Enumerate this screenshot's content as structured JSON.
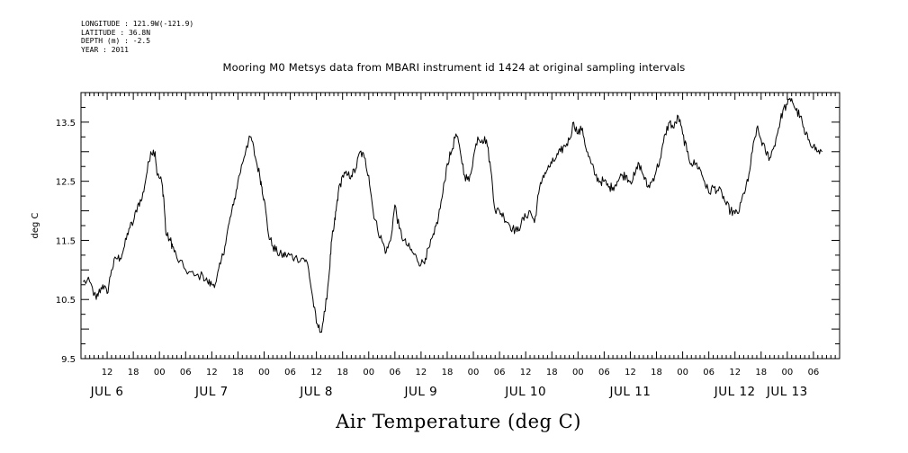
{
  "metadata": {
    "longitude": "LONGITUDE : 121.9W(-121.9)",
    "latitude": "LATITUDE : 36.8N",
    "depth": "DEPTH (m) : -2.5",
    "year": "YEAR : 2011"
  },
  "chart_data": {
    "type": "line",
    "title": "Mooring M0 Metsys data from MBARI instrument id 1424 at original sampling intervals",
    "xlabel": "Air Temperature (deg C)",
    "ylabel": "deg C",
    "ylim": [
      9.5,
      14.0
    ],
    "xlim_hours": [
      0,
      174
    ],
    "x_unit": "hours after 2011-07-06 06:00",
    "yticks": [
      9.5,
      10.5,
      11.5,
      12.5,
      13.5
    ],
    "ytick_labels": [
      "9.5",
      "10.5",
      "11.5",
      "12.5",
      "13.5"
    ],
    "hour_ticks": [
      {
        "h": 6,
        "label": "12"
      },
      {
        "h": 12,
        "label": "18"
      },
      {
        "h": 18,
        "label": "00"
      },
      {
        "h": 24,
        "label": "06"
      },
      {
        "h": 30,
        "label": "12"
      },
      {
        "h": 36,
        "label": "18"
      },
      {
        "h": 42,
        "label": "00"
      },
      {
        "h": 48,
        "label": "06"
      },
      {
        "h": 54,
        "label": "12"
      },
      {
        "h": 60,
        "label": "18"
      },
      {
        "h": 66,
        "label": "00"
      },
      {
        "h": 72,
        "label": "06"
      },
      {
        "h": 78,
        "label": "12"
      },
      {
        "h": 84,
        "label": "18"
      },
      {
        "h": 90,
        "label": "00"
      },
      {
        "h": 96,
        "label": "06"
      },
      {
        "h": 102,
        "label": "12"
      },
      {
        "h": 108,
        "label": "18"
      },
      {
        "h": 114,
        "label": "00"
      },
      {
        "h": 120,
        "label": "06"
      },
      {
        "h": 126,
        "label": "12"
      },
      {
        "h": 132,
        "label": "18"
      },
      {
        "h": 138,
        "label": "00"
      },
      {
        "h": 144,
        "label": "06"
      },
      {
        "h": 150,
        "label": "12"
      },
      {
        "h": 156,
        "label": "18"
      },
      {
        "h": 162,
        "label": "00"
      },
      {
        "h": 168,
        "label": "06"
      }
    ],
    "day_labels": [
      {
        "h": 6,
        "label": "JUL  6"
      },
      {
        "h": 30,
        "label": "JUL  7"
      },
      {
        "h": 54,
        "label": "JUL  8"
      },
      {
        "h": 78,
        "label": "JUL  9"
      },
      {
        "h": 102,
        "label": "JUL 10"
      },
      {
        "h": 126,
        "label": "JUL 11"
      },
      {
        "h": 150,
        "label": "JUL 12"
      },
      {
        "h": 162,
        "label": "JUL 13"
      }
    ],
    "series": [
      {
        "x": [
          0.5,
          2,
          3.5,
          4,
          5,
          6,
          7,
          8,
          9,
          10,
          11,
          12,
          13,
          14,
          15,
          16,
          17,
          17.5,
          18.5,
          19,
          19.5,
          20.5,
          21,
          22,
          24,
          26,
          28,
          29,
          30,
          31,
          32,
          33,
          34,
          35,
          36,
          37,
          38,
          39,
          40,
          41,
          41.5,
          42,
          43,
          44,
          45,
          46,
          47,
          48,
          49,
          51,
          52,
          53,
          54,
          55,
          56,
          57,
          57.5,
          58,
          58.5,
          59,
          60,
          61,
          62,
          63,
          64,
          65,
          66,
          67,
          68,
          69,
          70,
          71,
          72,
          73,
          74,
          75,
          76,
          77,
          78,
          79,
          80,
          81,
          82,
          83,
          84,
          85,
          86,
          87,
          88,
          89,
          90,
          91,
          92,
          93,
          94,
          95,
          96,
          97,
          98,
          99,
          100,
          101,
          102,
          103,
          104,
          105,
          106,
          107,
          108,
          109,
          110,
          111,
          112,
          113,
          114,
          115,
          116,
          117,
          118,
          119,
          120,
          121,
          122,
          123,
          124,
          125,
          126,
          127,
          128,
          129,
          130,
          131,
          132,
          133,
          134,
          135,
          136,
          137,
          138,
          139,
          140,
          141,
          142,
          143,
          144,
          145,
          146,
          147,
          148,
          149,
          150,
          151,
          152,
          153,
          154,
          155,
          156,
          157,
          158,
          159,
          160,
          161,
          162,
          163,
          164,
          165,
          166,
          167,
          168,
          169,
          170
        ],
        "y": [
          10.8,
          10.8,
          10.5,
          10.6,
          10.75,
          10.6,
          11.0,
          11.2,
          11.2,
          11.4,
          11.7,
          11.8,
          12.1,
          12.2,
          12.6,
          13.0,
          13.0,
          12.6,
          12.5,
          12.2,
          11.6,
          11.5,
          11.4,
          11.2,
          11.0,
          10.9,
          10.9,
          10.8,
          10.75,
          10.8,
          11.1,
          11.4,
          11.8,
          12.1,
          12.5,
          12.8,
          13.1,
          13.25,
          12.9,
          12.6,
          12.4,
          12.2,
          11.6,
          11.4,
          11.3,
          11.25,
          11.25,
          11.25,
          11.2,
          11.2,
          11.1,
          10.6,
          10.1,
          9.95,
          10.3,
          11.0,
          11.5,
          11.7,
          12.0,
          12.3,
          12.6,
          12.6,
          12.6,
          12.7,
          13.0,
          12.9,
          12.6,
          12.0,
          11.7,
          11.5,
          11.3,
          11.5,
          12.1,
          11.7,
          11.5,
          11.4,
          11.3,
          11.2,
          11.1,
          11.2,
          11.4,
          11.6,
          11.9,
          12.3,
          12.8,
          13.0,
          13.3,
          13.0,
          12.6,
          12.5,
          12.9,
          13.25,
          13.2,
          13.2,
          12.7,
          12.0,
          12.0,
          11.9,
          11.8,
          11.7,
          11.65,
          11.8,
          11.9,
          12.0,
          11.8,
          12.3,
          12.6,
          12.7,
          12.8,
          12.9,
          13.0,
          13.1,
          13.2,
          13.5,
          13.3,
          13.4,
          13.0,
          12.8,
          12.6,
          12.5,
          12.5,
          12.4,
          12.4,
          12.5,
          12.6,
          12.6,
          12.5,
          12.6,
          12.8,
          12.6,
          12.4,
          12.5,
          12.7,
          12.9,
          13.3,
          13.5,
          13.4,
          13.6,
          13.3,
          13.0,
          12.8,
          12.8,
          12.7,
          12.5,
          12.3,
          12.4,
          12.35,
          12.3,
          12.1,
          12.0,
          11.95,
          12.0,
          12.3,
          12.5,
          13.0,
          13.4,
          13.2,
          13.0,
          12.9,
          13.1,
          13.4,
          13.7,
          13.8,
          13.9,
          13.7,
          13.6,
          13.3,
          13.2,
          13.1,
          13.0,
          13.0
        ]
      }
    ]
  }
}
